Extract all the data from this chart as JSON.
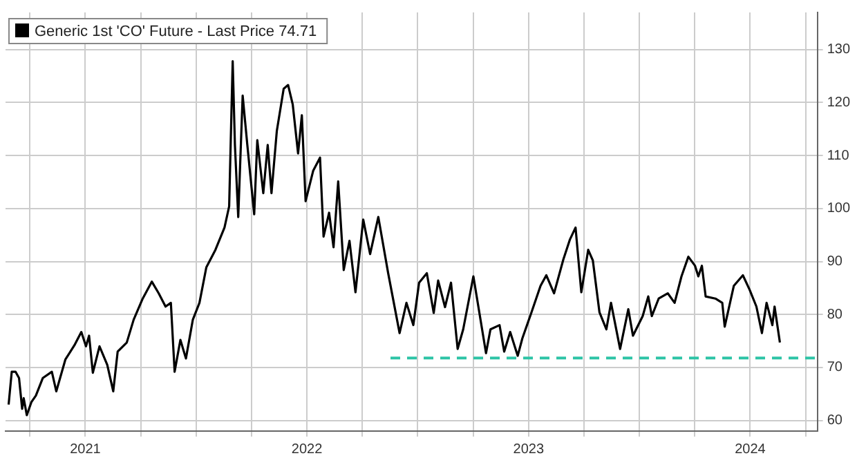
{
  "chart_data": {
    "type": "line",
    "legend": "top left",
    "grid": true,
    "marker": "none",
    "xlim": [
      2021.14,
      2024.803
    ],
    "xticks": [
      {
        "value": 2021.25,
        "label": null
      },
      {
        "value": 2021.5,
        "label": "2021"
      },
      {
        "value": 2021.75,
        "label": null
      },
      {
        "value": 2022,
        "label": null
      },
      {
        "value": 2022.25,
        "label": null
      },
      {
        "value": 2022.5,
        "label": "2022"
      },
      {
        "value": 2022.75,
        "label": null
      },
      {
        "value": 2023,
        "label": null
      },
      {
        "value": 2023.25,
        "label": null
      },
      {
        "value": 2023.5,
        "label": "2023"
      },
      {
        "value": 2023.75,
        "label": null
      },
      {
        "value": 2024,
        "label": null
      },
      {
        "value": 2024.25,
        "label": null
      },
      {
        "value": 2024.5,
        "label": "2024"
      },
      {
        "value": 2024.75,
        "label": null
      }
    ],
    "ylim": [
      58,
      137
    ],
    "yticks": [
      60,
      70,
      80,
      90,
      100,
      110,
      120,
      130
    ],
    "series": [
      {
        "name": "Generic 1st 'CO' Future - Last Price 74.71",
        "color": "#000000",
        "line_style": "solid",
        "x": [
          2021.154,
          2021.168,
          2021.185,
          2021.201,
          2021.215,
          2021.222,
          2021.236,
          2021.257,
          2021.277,
          2021.308,
          2021.349,
          2021.369,
          2021.41,
          2021.451,
          2021.482,
          2021.503,
          2021.517,
          2021.534,
          2021.564,
          2021.599,
          2021.626,
          2021.646,
          2021.687,
          2021.718,
          2021.759,
          2021.8,
          2021.831,
          2021.862,
          2021.886,
          2021.903,
          2021.929,
          2021.954,
          2021.985,
          2022.015,
          2022.046,
          2022.087,
          2022.128,
          2022.149,
          2022.165,
          2022.175,
          2022.19,
          2022.21,
          2022.231,
          2022.262,
          2022.276,
          2022.303,
          2022.323,
          2022.34,
          2022.364,
          2022.395,
          2022.415,
          2022.436,
          2022.46,
          2022.477,
          2022.494,
          2022.528,
          2022.559,
          2022.575,
          2022.6,
          2022.62,
          2022.641,
          2022.666,
          2022.692,
          2022.719,
          2022.754,
          2022.785,
          2022.822,
          2022.866,
          2022.918,
          2022.949,
          2022.98,
          2023.006,
          2023.041,
          2023.072,
          2023.092,
          2023.123,
          2023.15,
          2023.18,
          2023.205,
          2023.251,
          2023.308,
          2023.328,
          2023.369,
          2023.39,
          2023.417,
          2023.451,
          2023.472,
          2023.513,
          2023.554,
          2023.58,
          2023.615,
          2023.657,
          2023.687,
          2023.712,
          2023.738,
          2023.769,
          2023.79,
          2023.82,
          2023.851,
          2023.872,
          2023.913,
          2023.95,
          2023.971,
          2024.015,
          2024.04,
          2024.056,
          2024.087,
          2024.128,
          2024.159,
          2024.19,
          2024.221,
          2024.251,
          2024.266,
          2024.282,
          2024.299,
          2024.343,
          2024.374,
          2024.385,
          2024.426,
          2024.467,
          2024.497,
          2024.528,
          2024.553,
          2024.574,
          2024.6,
          2024.61,
          2024.634
        ],
        "values": [
          63.0,
          69.2,
          69.2,
          68,
          62.2,
          64.2,
          61,
          63.5,
          64.7,
          68,
          69.2,
          65.5,
          71.5,
          74.2,
          76.7,
          74,
          76,
          69,
          74,
          70.5,
          65.5,
          73,
          74.7,
          79,
          83,
          86.2,
          84,
          81.5,
          82.2,
          69.2,
          75.2,
          71.7,
          79,
          82.2,
          88.9,
          92.2,
          96.4,
          100.4,
          127.8,
          112,
          98.4,
          121.3,
          112,
          98.9,
          112.9,
          102.9,
          112,
          102.9,
          114.6,
          122.6,
          123.3,
          119.6,
          110.4,
          117.6,
          101.4,
          107.1,
          109.6,
          94.7,
          99.2,
          92.7,
          105.1,
          88.4,
          93.9,
          84.2,
          97.9,
          91.4,
          98.4,
          87.9,
          76.5,
          82.2,
          78,
          86,
          87.8,
          80.3,
          86.4,
          81.4,
          86,
          73.5,
          77.2,
          87.2,
          72.7,
          77.2,
          78,
          73,
          76.7,
          72.2,
          75.5,
          80.4,
          85.4,
          87.4,
          84,
          90.4,
          94.2,
          96.4,
          84.2,
          92.2,
          90.2,
          80.4,
          77.2,
          82.2,
          73.5,
          81,
          76,
          79.7,
          83.4,
          79.7,
          83,
          84,
          82.2,
          87.2,
          90.9,
          89.2,
          87.2,
          89.2,
          83.4,
          83,
          82.2,
          77.7,
          85.4,
          87.4,
          84.7,
          81.5,
          76.5,
          82.2,
          78,
          81.5,
          74.71
        ]
      },
      {
        "color": "#2ec4a6",
        "line_style": "dashed",
        "x": [
          2022.877,
          2024.803
        ],
        "values": [
          71.8,
          71.8
        ]
      }
    ]
  }
}
